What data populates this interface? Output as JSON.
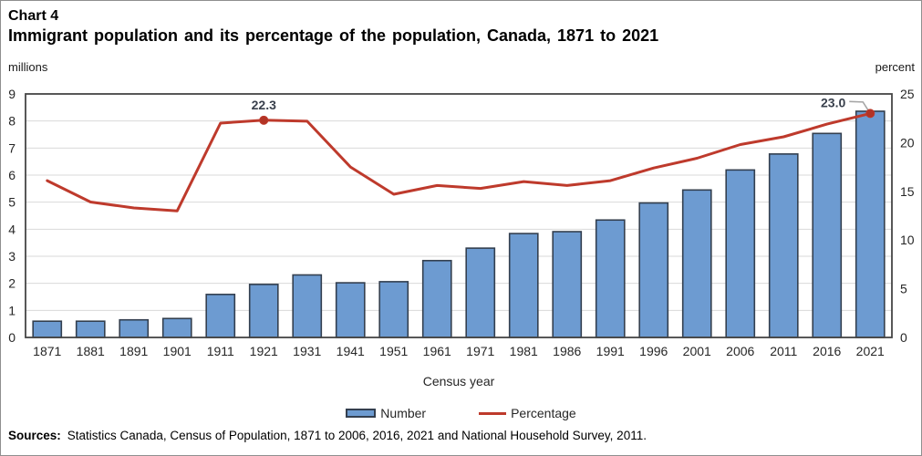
{
  "header": {
    "chart_label": "Chart 4",
    "title": "Immigrant population and its percentage of the population, Canada, 1871 to 2021"
  },
  "axes": {
    "left_unit": "millions",
    "right_unit": "percent",
    "xlabel": "Census year",
    "left_ticks": [
      0,
      1,
      2,
      3,
      4,
      5,
      6,
      7,
      8,
      9
    ],
    "right_ticks": [
      0,
      5,
      10,
      15,
      20,
      25
    ]
  },
  "legend": {
    "items": [
      {
        "label": "Number",
        "swatch": "bar-swatch"
      },
      {
        "label": "Percentage",
        "swatch": "line-swatch"
      }
    ]
  },
  "source": {
    "prefix": "Sources:",
    "text": "Statistics Canada, Census of Population, 1871 to 2006, 2016, 2021 and National Household Survey, 2011."
  },
  "colors": {
    "bar_fill": "#6D9BD1",
    "bar_stroke": "#333F4F",
    "line": "#BE3A2C",
    "marker": "#B23325",
    "grid": "#D9D9D9",
    "plot_border": "#454545",
    "leader": "#A6A6A6",
    "annotation_text": "#39404C",
    "tick_text": "#262626"
  },
  "chart_data": {
    "type": "bar+line combo",
    "title": "Immigrant population and its percentage of the population, Canada, 1871 to 2021",
    "xlabel": "Census year",
    "ylabel_left": "millions",
    "ylabel_right": "percent",
    "ylim_left": [
      0,
      9
    ],
    "ylim_right": [
      0,
      25
    ],
    "grid": "horizontal",
    "legend_position": "bottom",
    "categories": [
      "1871",
      "1881",
      "1891",
      "1901",
      "1911",
      "1921",
      "1931",
      "1941",
      "1951",
      "1961",
      "1971",
      "1981",
      "1986",
      "1991",
      "1996",
      "2001",
      "2006",
      "2011",
      "2016",
      "2021"
    ],
    "series": [
      {
        "name": "Number",
        "type": "bar",
        "axis": "left",
        "unit": "millions",
        "values": [
          0.6,
          0.6,
          0.65,
          0.7,
          1.59,
          1.96,
          2.31,
          2.02,
          2.06,
          2.84,
          3.3,
          3.84,
          3.91,
          4.34,
          4.97,
          5.45,
          6.19,
          6.78,
          7.54,
          8.36
        ]
      },
      {
        "name": "Percentage",
        "type": "line",
        "axis": "right",
        "unit": "percent",
        "values": [
          16.1,
          13.9,
          13.3,
          13.0,
          22.0,
          22.3,
          22.2,
          17.5,
          14.7,
          15.6,
          15.3,
          16.0,
          15.6,
          16.1,
          17.4,
          18.4,
          19.8,
          20.6,
          21.9,
          23.0
        ]
      }
    ],
    "annotations": [
      {
        "category": "1921",
        "value": 22.3,
        "label": "22.3",
        "leader": false
      },
      {
        "category": "2021",
        "value": 23.0,
        "label": "23.0",
        "leader": true
      }
    ]
  }
}
